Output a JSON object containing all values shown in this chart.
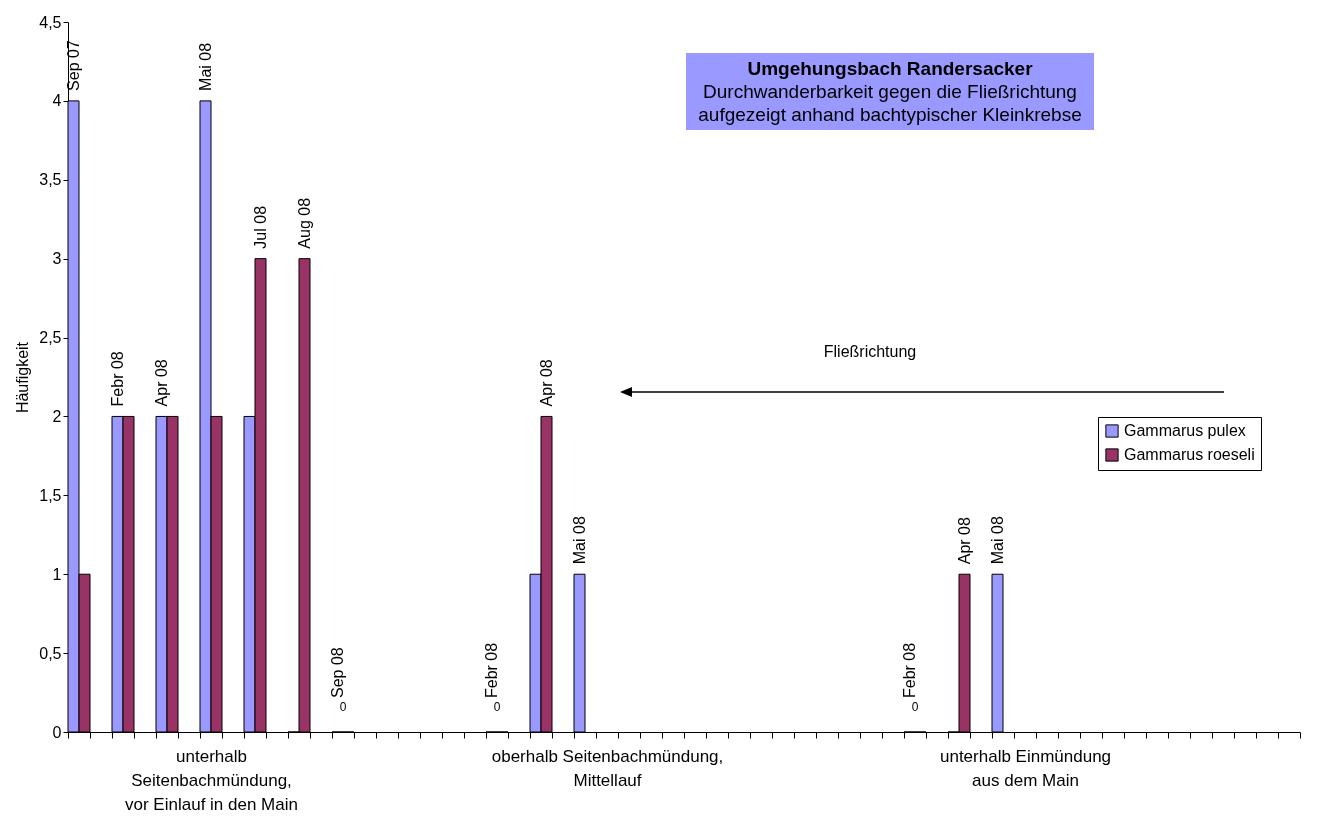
{
  "chart_data": {
    "type": "bar",
    "title": "Umgehungsbach Randersacker",
    "subtitle": "Durchwanderbarkeit gegen die Fließrichtung aufgezeigt anhand bachtypischer Kleinkrebse",
    "ylabel": "Häufigkeit",
    "categories": [
      null,
      null,
      null,
      null,
      null,
      null,
      "unterhalb\nSeitenbachmündung,\nvor Einlauf in den Main",
      null,
      null,
      null,
      null,
      null,
      null,
      null,
      null,
      null,
      null,
      null,
      null,
      null,
      null,
      null,
      null,
      null,
      "oberhalb Seitenbachmündung,\nMittellauf",
      null,
      null,
      null,
      null,
      null,
      null,
      null,
      null,
      null,
      null,
      null,
      null,
      null,
      null,
      null,
      null,
      null,
      null,
      "unterhalb Einmündung\naus dem Main",
      null,
      null,
      null,
      null,
      null,
      null,
      null,
      null,
      null,
      null,
      null,
      null
    ],
    "series": [
      {
        "name": "Gammarus pulex",
        "color": "#9999ff",
        "values": [
          4,
          null,
          2,
          null,
          2,
          null,
          4,
          null,
          2,
          null,
          0,
          null,
          0,
          null,
          null,
          null,
          null,
          null,
          null,
          0,
          null,
          1,
          null,
          1,
          null,
          null,
          null,
          null,
          null,
          null,
          null,
          null,
          null,
          null,
          null,
          null,
          null,
          null,
          0,
          null,
          0,
          null,
          1,
          null,
          null,
          null,
          null,
          null,
          null,
          null,
          null,
          null,
          null,
          null,
          null,
          null
        ],
        "value_labels": [
          "Sep 07",
          null,
          "Febr  08",
          null,
          "Apr  08",
          null,
          "Mai  08",
          null,
          null,
          null,
          null,
          null,
          "Sep  08",
          null,
          null,
          null,
          null,
          null,
          null,
          "Febr  08",
          null,
          null,
          null,
          "Mai  08",
          null,
          null,
          null,
          null,
          null,
          null,
          null,
          null,
          null,
          null,
          null,
          null,
          null,
          null,
          "Febr  08",
          null,
          null,
          null,
          "Mai  08",
          null,
          null,
          null,
          null,
          null,
          null,
          null,
          null,
          null,
          null,
          null,
          null,
          null
        ]
      },
      {
        "name": "Gammarus roeseli",
        "color": "#993366",
        "values": [
          1,
          null,
          2,
          null,
          2,
          null,
          2,
          null,
          3,
          null,
          3,
          null,
          0,
          null,
          null,
          null,
          null,
          null,
          null,
          0,
          null,
          2,
          null,
          null,
          null,
          null,
          null,
          null,
          null,
          null,
          null,
          null,
          null,
          null,
          null,
          null,
          null,
          null,
          0,
          null,
          1,
          null,
          null,
          null,
          null,
          null,
          null,
          null,
          null,
          null,
          null,
          null,
          null,
          null,
          null,
          null
        ],
        "value_labels": [
          null,
          null,
          null,
          null,
          null,
          null,
          null,
          null,
          "Jul  08",
          null,
          "Aug  08",
          null,
          "0",
          null,
          null,
          null,
          null,
          null,
          null,
          "0",
          null,
          "Apr  08",
          null,
          null,
          null,
          null,
          null,
          null,
          null,
          null,
          null,
          null,
          null,
          null,
          null,
          null,
          null,
          null,
          "0",
          null,
          "Apr  08",
          null,
          null,
          null,
          null,
          null,
          null,
          null,
          null,
          null,
          null,
          null,
          null,
          null,
          null,
          null
        ]
      }
    ],
    "ylim": [
      0,
      4.5
    ],
    "yticks": [
      0,
      {
        "value": 0.5,
        "label": "0,5"
      },
      1,
      {
        "value": 1.5,
        "label": "1,5"
      },
      2,
      {
        "value": 2.5,
        "label": "2,5"
      },
      3,
      {
        "value": 3.5,
        "label": "3,5"
      },
      4,
      {
        "value": 4.5,
        "label": "4,5"
      }
    ],
    "legend": "right",
    "annotations": [
      "Fließrichtung"
    ]
  }
}
